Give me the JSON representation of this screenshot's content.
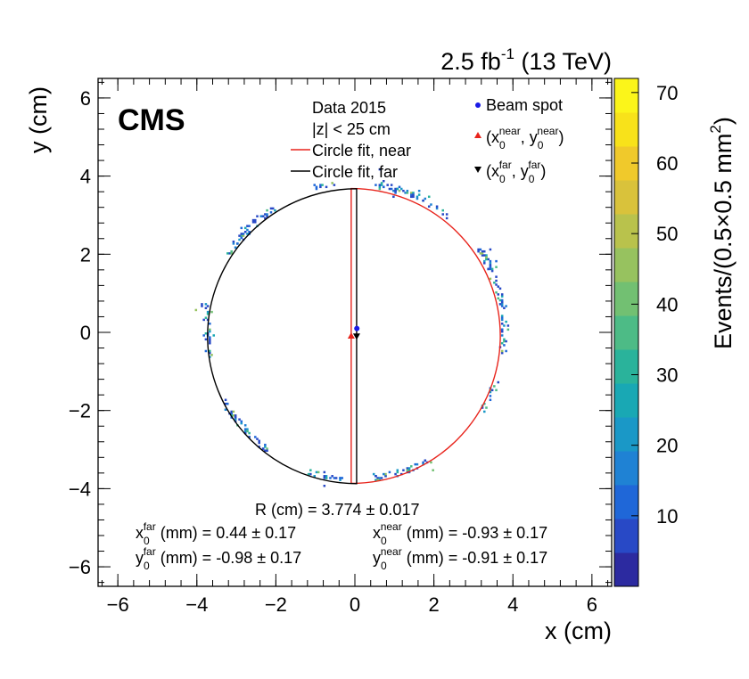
{
  "chart_data": {
    "type": "heatmap",
    "experiment_label": "CMS",
    "luminosity": "2.5 fb",
    "luminosity_sup": "-1",
    "energy": " (13 TeV)",
    "xlabel": "x (cm)",
    "ylabel": "y (cm)",
    "zlabel_main": "Events/(0.5×0.5 mm",
    "zlabel_sup": "2",
    "zlabel_close": ")",
    "xlim": [
      -6.5,
      6.5
    ],
    "ylim": [
      -6.5,
      6.5
    ],
    "zlim": [
      0,
      72
    ],
    "x_ticks": [
      -6,
      -4,
      -2,
      0,
      2,
      4,
      6
    ],
    "x_tick_labels": [
      "−6",
      "−4",
      "−2",
      "0",
      "2",
      "4",
      "6"
    ],
    "y_ticks": [
      -6,
      -4,
      -2,
      0,
      2,
      4,
      6
    ],
    "y_tick_labels": [
      "−6",
      "−4",
      "−2",
      "0",
      "2",
      "4",
      "6"
    ],
    "z_ticks": [
      10,
      20,
      30,
      40,
      50,
      60,
      70
    ],
    "z_tick_labels": [
      "10",
      "20",
      "30",
      "40",
      "50",
      "60",
      "70"
    ],
    "legend": {
      "header1": "Data 2015",
      "header2": "|z| < 25 cm",
      "near_label": "Circle fit, near",
      "far_label": "Circle fit, far",
      "beamspot_label": "Beam spot",
      "near_center_open": "(x",
      "near_center_sub1": "0",
      "near_center_sup1": "near",
      "near_center_mid": ", y",
      "near_center_sub2": "0",
      "near_center_sup2": "near",
      "near_center_close": ")",
      "far_center_open": "(x",
      "far_center_sub1": "0",
      "far_center_sup1": "far",
      "far_center_mid": ", y",
      "far_center_sub2": "0",
      "far_center_sup2": "far",
      "far_center_close": ")"
    },
    "fit_results": {
      "radius_text": "R (cm)  = 3.774 ± 0.017",
      "x_far": {
        "base": "x",
        "sub": "0",
        "sup": "far",
        "rest": " (mm)  = 0.44 ± 0.17"
      },
      "y_far": {
        "base": "y",
        "sub": "0",
        "sup": "far",
        "rest": " (mm)  = -0.98 ± 0.17"
      },
      "x_near": {
        "base": "x",
        "sub": "0",
        "sup": "near",
        "rest": " (mm)  = -0.93 ± 0.17"
      },
      "y_near": {
        "base": "y",
        "sub": "0",
        "sup": "near",
        "rest": " (mm)  = -0.91 ± 0.17"
      }
    },
    "circle_near": {
      "cx": -0.093,
      "cy": -0.091,
      "r": 3.774,
      "side": "right",
      "color": "#e8241c"
    },
    "circle_far": {
      "cx": 0.044,
      "cy": -0.098,
      "r": 3.774,
      "side": "left",
      "color": "#000000"
    },
    "beam_spot": {
      "x": 0.05,
      "y": 0.1,
      "color": "#1a1ae6"
    },
    "near_center_marker": {
      "x": -0.093,
      "y": -0.091,
      "color": "#e8241c"
    },
    "far_center_marker": {
      "x": 0.044,
      "y": -0.098,
      "color": "#000000"
    },
    "hit_clusters": [
      {
        "angle_range": [
          2.1,
          2.6
        ],
        "density": 1.0
      },
      {
        "angle_range": [
          1.7,
          1.85
        ],
        "density": 0.6
      },
      {
        "angle_range": [
          0.15,
          0.6
        ],
        "density": 1.2
      },
      {
        "angle_range": [
          -0.15,
          0.12
        ],
        "density": 0.9
      },
      {
        "angle_range": [
          -0.6,
          -0.35
        ],
        "density": 0.6
      },
      {
        "angle_range": [
          0.9,
          1.45
        ],
        "density": 1.0
      },
      {
        "angle_range": [
          -1.45,
          -1.05
        ],
        "density": 1.0
      },
      {
        "angle_range": [
          -1.9,
          -1.65
        ],
        "density": 0.9
      },
      {
        "angle_range": [
          -2.55,
          -2.2
        ],
        "density": 1.0
      },
      {
        "angle_range": [
          2.95,
          3.35
        ],
        "density": 0.8
      },
      {
        "angle_range": [
          3.6,
          3.9
        ],
        "density": 0.5
      }
    ],
    "palette": [
      "#2c2aa0",
      "#2849c6",
      "#1f67d8",
      "#1f82d4",
      "#1a98c7",
      "#19a8b4",
      "#2ab39b",
      "#4dbb86",
      "#72c072",
      "#97c25f",
      "#b9c24c",
      "#d9c23b",
      "#f0c92b",
      "#f8e21a",
      "#fbf51a"
    ]
  }
}
